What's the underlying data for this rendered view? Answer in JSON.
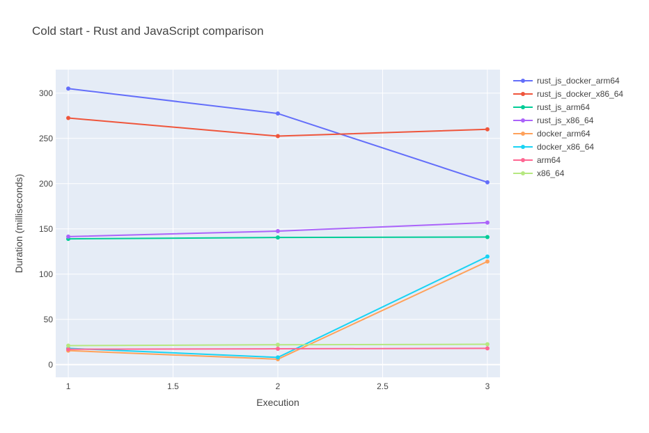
{
  "chart_data": {
    "type": "line",
    "title": "Cold start - Rust and JavaScript comparison",
    "xlabel": "Execution",
    "ylabel": "Duration (milliseconds)",
    "x": [
      1,
      2,
      3
    ],
    "xlim": [
      0.94,
      3.06
    ],
    "ylim": [
      -14,
      326
    ],
    "xticks": [
      1,
      1.5,
      2,
      2.5,
      3
    ],
    "xtick_labels": [
      "1",
      "1.5",
      "2",
      "2.5",
      "3"
    ],
    "yticks": [
      0,
      50,
      100,
      150,
      200,
      250,
      300
    ],
    "ytick_labels": [
      "0",
      "50",
      "100",
      "150",
      "200",
      "250",
      "300"
    ],
    "grid": true,
    "legend_position": "right",
    "series": [
      {
        "name": "rust_js_docker_arm64",
        "color": "#636efa",
        "values": [
          305,
          277.5,
          201.5
        ]
      },
      {
        "name": "rust_js_docker_x86_64",
        "color": "#ef553b",
        "values": [
          272.5,
          252.5,
          260
        ]
      },
      {
        "name": "rust_js_arm64",
        "color": "#00cc96",
        "values": [
          139,
          140.5,
          141
        ]
      },
      {
        "name": "rust_js_x86_64",
        "color": "#ab63fa",
        "values": [
          141.5,
          147.5,
          157
        ]
      },
      {
        "name": "docker_arm64",
        "color": "#ffa15a",
        "values": [
          15.5,
          6,
          114
        ]
      },
      {
        "name": "docker_x86_64",
        "color": "#19d3f3",
        "values": [
          18,
          8,
          119.5
        ]
      },
      {
        "name": "arm64",
        "color": "#ff6692",
        "values": [
          17,
          17.5,
          18
        ]
      },
      {
        "name": "x86_64",
        "color": "#b6e880",
        "values": [
          21,
          22,
          22.5
        ]
      }
    ]
  }
}
